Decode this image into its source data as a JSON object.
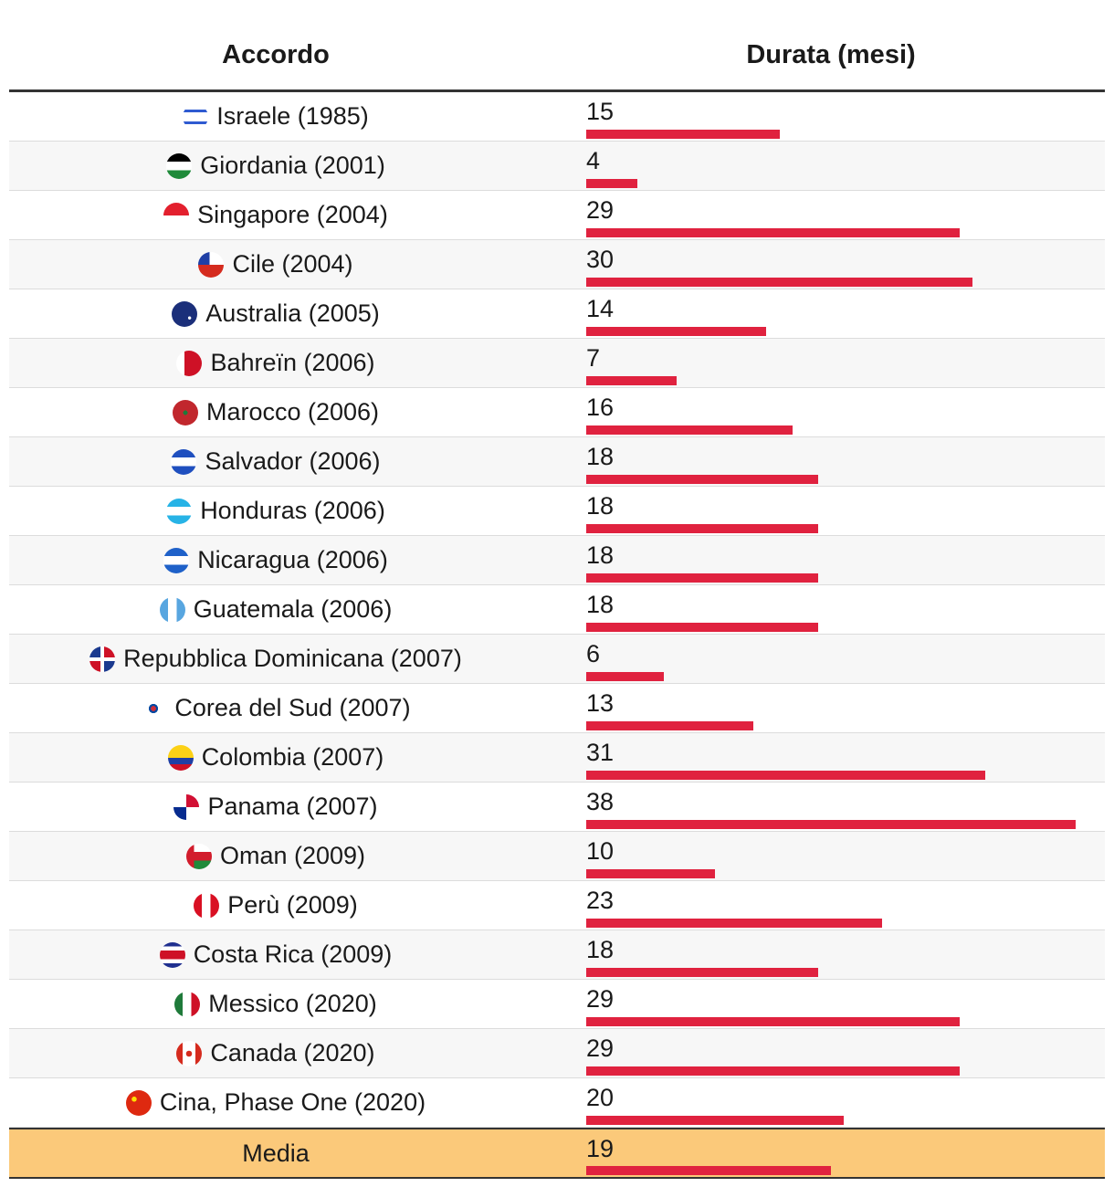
{
  "chart_data": {
    "type": "table",
    "columns": [
      "Accordo",
      "Durata (mesi)"
    ],
    "rows": [
      {
        "label": "Israele (1985)",
        "value": 15,
        "flag": "flag-israel"
      },
      {
        "label": "Giordania (2001)",
        "value": 4,
        "flag": "flag-jordan"
      },
      {
        "label": "Singapore (2004)",
        "value": 29,
        "flag": "flag-singapore"
      },
      {
        "label": "Cile (2004)",
        "value": 30,
        "flag": "flag-chile"
      },
      {
        "label": "Australia (2005)",
        "value": 14,
        "flag": "flag-australia"
      },
      {
        "label": "Bahreïn (2006)",
        "value": 7,
        "flag": "flag-bahrain"
      },
      {
        "label": "Marocco (2006)",
        "value": 16,
        "flag": "flag-morocco"
      },
      {
        "label": "Salvador (2006)",
        "value": 18,
        "flag": "flag-el-salvador"
      },
      {
        "label": "Honduras (2006)",
        "value": 18,
        "flag": "flag-honduras"
      },
      {
        "label": "Nicaragua (2006)",
        "value": 18,
        "flag": "flag-nicaragua"
      },
      {
        "label": "Guatemala (2006)",
        "value": 18,
        "flag": "flag-guatemala"
      },
      {
        "label": "Repubblica Dominicana (2007)",
        "value": 6,
        "flag": "flag-dominican-republic"
      },
      {
        "label": "Corea del Sud (2007)",
        "value": 13,
        "flag": "flag-south-korea"
      },
      {
        "label": "Colombia (2007)",
        "value": 31,
        "flag": "flag-colombia"
      },
      {
        "label": "Panama (2007)",
        "value": 38,
        "flag": "flag-panama"
      },
      {
        "label": "Oman (2009)",
        "value": 10,
        "flag": "flag-oman"
      },
      {
        "label": "Perù (2009)",
        "value": 23,
        "flag": "flag-peru"
      },
      {
        "label": "Costa Rica (2009)",
        "value": 18,
        "flag": "flag-costa-rica"
      },
      {
        "label": "Messico (2020)",
        "value": 29,
        "flag": "flag-mexico"
      },
      {
        "label": "Canada (2020)",
        "value": 29,
        "flag": "flag-canada"
      },
      {
        "label": "Cina, Phase One (2020)",
        "value": 20,
        "flag": "flag-china"
      }
    ],
    "average": {
      "label": "Media",
      "value": 19
    },
    "xlim": [
      0,
      38
    ],
    "bar_color": "#e0223f",
    "average_row_color": "#fbc97a"
  }
}
